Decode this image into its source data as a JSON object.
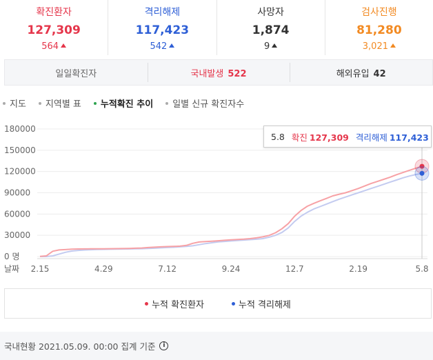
{
  "colors": {
    "red": "#e5364b",
    "blue": "#2e5fd6",
    "dark": "#333333",
    "orange": "#f28a22",
    "redLine": "#f7a1a5",
    "blueLine": "#c3cbf0"
  },
  "stats": [
    {
      "label": "확진환자",
      "value": "127,309",
      "delta": "564",
      "color": "#e5364b"
    },
    {
      "label": "격리해제",
      "value": "117,423",
      "delta": "542",
      "color": "#2e5fd6"
    },
    {
      "label": "사망자",
      "value": "1,874",
      "delta": "9",
      "color": "#333333"
    },
    {
      "label": "검사진행",
      "value": "81,280",
      "delta": "3,021",
      "color": "#f28a22"
    }
  ],
  "daily": {
    "label": "일일확진자",
    "domestic_label": "국내발생",
    "domestic_value": "522",
    "overseas_label": "해외유입",
    "overseas_value": "42"
  },
  "tabs": [
    "지도",
    "지역별 표",
    "누적확진 추이",
    "일별 신규 확진자수"
  ],
  "tooltip": {
    "date": "5.8",
    "confirmed_label": "확진",
    "confirmed_value": "127,309",
    "released_label": "격리해제",
    "released_value": "117,423"
  },
  "footer": {
    "text": "국내현황 2021.05.09. 00:00 집계 기준",
    "info_icon": "i"
  },
  "chart_data": {
    "type": "line",
    "ylabel": "명",
    "xlabel": "날짜",
    "ylim": [
      0,
      180000
    ],
    "y_ticks": [
      "180000",
      "150000",
      "120000",
      "90000",
      "60000",
      "30000",
      "0 명"
    ],
    "x_ticks": [
      "2.15",
      "4.29",
      "7.12",
      "9.24",
      "12.7",
      "2.19",
      "5.8"
    ],
    "x_tick_index": [
      0,
      10,
      20,
      30,
      40,
      50,
      60
    ],
    "series": [
      {
        "name": "누적 확진환자",
        "color": "#e5364b",
        "values": [
          200,
          1000,
          7500,
          9300,
          9800,
          10400,
          10700,
          10800,
          10900,
          11000,
          11000,
          11100,
          11200,
          11300,
          11500,
          11800,
          12100,
          12700,
          13200,
          13700,
          14100,
          14300,
          14700,
          15800,
          18700,
          20500,
          21100,
          21600,
          22300,
          23000,
          23500,
          24000,
          24500,
          25300,
          26400,
          27800,
          29900,
          33600,
          39200,
          46500,
          56900,
          65000,
          71000,
          75000,
          78600,
          82000,
          85600,
          88000,
          90000,
          93000,
          96000,
          99500,
          103000,
          106000,
          109000,
          112000,
          115500,
          118500,
          121500,
          124500,
          127309
        ]
      },
      {
        "name": "누적 격리해제",
        "color": "#2e5fd6",
        "values": [
          0,
          0,
          1000,
          3500,
          6000,
          7800,
          8700,
          9200,
          9600,
          9900,
          10100,
          10300,
          10500,
          10600,
          10700,
          10900,
          11100,
          11400,
          11800,
          12300,
          12700,
          13100,
          13700,
          14300,
          15200,
          16700,
          18300,
          19500,
          20600,
          21300,
          22000,
          22700,
          23300,
          23800,
          24400,
          25300,
          27300,
          30000,
          34000,
          40500,
          49500,
          57000,
          62500,
          67000,
          70500,
          74000,
          77500,
          81000,
          84000,
          87000,
          90000,
          93000,
          96000,
          99000,
          102000,
          105000,
          108000,
          111000,
          113500,
          115700,
          117423
        ]
      }
    ]
  },
  "legend": [
    {
      "label": "누적 확진환자",
      "color": "#e5364b"
    },
    {
      "label": "누적 격리해제",
      "color": "#2e5fd6"
    }
  ]
}
